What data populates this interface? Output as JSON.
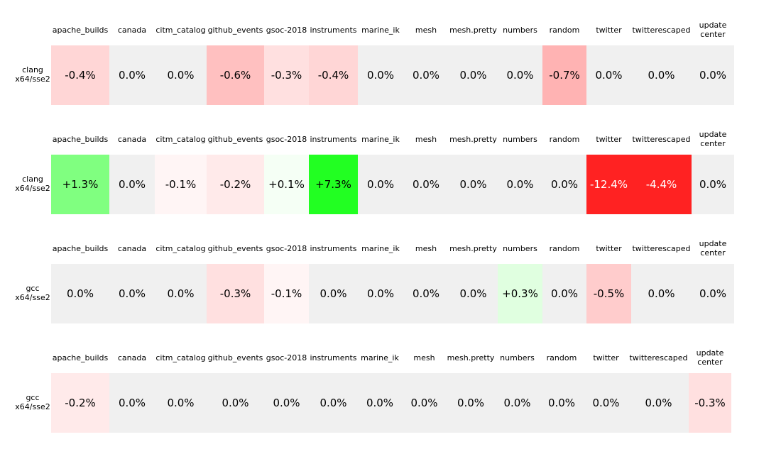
{
  "columns": [
    "apache_builds",
    "canada",
    "citm_catalog",
    "github_events",
    "gsoc-2018",
    "instruments",
    "marine_ik",
    "mesh",
    "mesh.pretty",
    "numbers",
    "random",
    "twitter",
    "twitterescaped",
    "update center"
  ],
  "panels": [
    {
      "label": "clang\nx64/sse2",
      "cells": [
        {
          "text": "-0.4%",
          "color": "#ffd6d6"
        },
        {
          "text": "0.0%",
          "color": "#f0f0f0"
        },
        {
          "text": "0.0%",
          "color": "#f0f0f0"
        },
        {
          "text": "-0.6%",
          "color": "#ffc0c0"
        },
        {
          "text": "-0.3%",
          "color": "#ffe0e0"
        },
        {
          "text": "-0.4%",
          "color": "#ffd6d6"
        },
        {
          "text": "0.0%",
          "color": "#f0f0f0"
        },
        {
          "text": "0.0%",
          "color": "#f0f0f0"
        },
        {
          "text": "0.0%",
          "color": "#f0f0f0"
        },
        {
          "text": "0.0%",
          "color": "#f0f0f0"
        },
        {
          "text": "-0.7%",
          "color": "#ffb3b3"
        },
        {
          "text": "0.0%",
          "color": "#f0f0f0"
        },
        {
          "text": "0.0%",
          "color": "#f0f0f0"
        },
        {
          "text": "0.0%",
          "color": "#f0f0f0"
        }
      ]
    },
    {
      "label": "clang\nx64/sse2",
      "cells": [
        {
          "text": "+1.3%",
          "color": "#80ff80"
        },
        {
          "text": "0.0%",
          "color": "#f0f0f0"
        },
        {
          "text": "-0.1%",
          "color": "#fff5f5"
        },
        {
          "text": "-0.2%",
          "color": "#ffeaea"
        },
        {
          "text": "+0.1%",
          "color": "#f5fff5"
        },
        {
          "text": "+7.3%",
          "color": "#22ff22"
        },
        {
          "text": "0.0%",
          "color": "#f0f0f0"
        },
        {
          "text": "0.0%",
          "color": "#f0f0f0"
        },
        {
          "text": "0.0%",
          "color": "#f0f0f0"
        },
        {
          "text": "0.0%",
          "color": "#f0f0f0"
        },
        {
          "text": "0.0%",
          "color": "#f0f0f0"
        },
        {
          "text": "-12.4%",
          "color": "#ff2222",
          "text_color": "#ffffff"
        },
        {
          "text": "-4.4%",
          "color": "#ff2222",
          "text_color": "#ffffff"
        },
        {
          "text": "0.0%",
          "color": "#f0f0f0"
        }
      ]
    },
    {
      "label": "gcc\nx64/sse2",
      "cells": [
        {
          "text": "0.0%",
          "color": "#f0f0f0"
        },
        {
          "text": "0.0%",
          "color": "#f0f0f0"
        },
        {
          "text": "0.0%",
          "color": "#f0f0f0"
        },
        {
          "text": "-0.3%",
          "color": "#ffe0e0"
        },
        {
          "text": "-0.1%",
          "color": "#fff5f5"
        },
        {
          "text": "0.0%",
          "color": "#f0f0f0"
        },
        {
          "text": "0.0%",
          "color": "#f0f0f0"
        },
        {
          "text": "0.0%",
          "color": "#f0f0f0"
        },
        {
          "text": "0.0%",
          "color": "#f0f0f0"
        },
        {
          "text": "+0.3%",
          "color": "#e0ffe0"
        },
        {
          "text": "0.0%",
          "color": "#f0f0f0"
        },
        {
          "text": "-0.5%",
          "color": "#ffcccc"
        },
        {
          "text": "0.0%",
          "color": "#f0f0f0"
        },
        {
          "text": "0.0%",
          "color": "#f0f0f0"
        }
      ]
    },
    {
      "label": "gcc\nx64/sse2",
      "cells": [
        {
          "text": "-0.2%",
          "color": "#ffeaea"
        },
        {
          "text": "0.0%",
          "color": "#f0f0f0"
        },
        {
          "text": "0.0%",
          "color": "#f0f0f0"
        },
        {
          "text": "0.0%",
          "color": "#f0f0f0"
        },
        {
          "text": "0.0%",
          "color": "#f0f0f0"
        },
        {
          "text": "0.0%",
          "color": "#f0f0f0"
        },
        {
          "text": "0.0%",
          "color": "#f0f0f0"
        },
        {
          "text": "0.0%",
          "color": "#f0f0f0"
        },
        {
          "text": "0.0%",
          "color": "#f0f0f0"
        },
        {
          "text": "0.0%",
          "color": "#f0f0f0"
        },
        {
          "text": "0.0%",
          "color": "#f0f0f0"
        },
        {
          "text": "0.0%",
          "color": "#f0f0f0"
        },
        {
          "text": "0.0%",
          "color": "#f0f0f0"
        },
        {
          "text": "-0.3%",
          "color": "#ffe0e0"
        }
      ]
    }
  ]
}
